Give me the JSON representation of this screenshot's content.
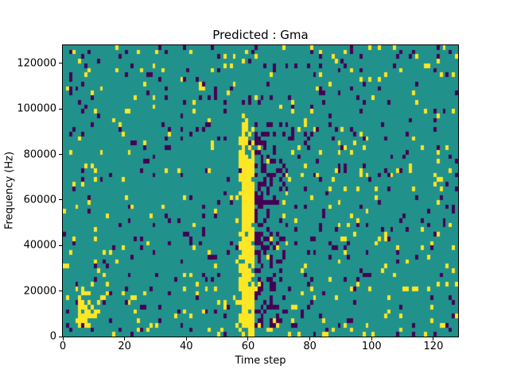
{
  "chart_data": {
    "type": "heatmap",
    "title": "Predicted : Gma",
    "xlabel": "Time step",
    "ylabel": "Frequency (Hz)",
    "x_range": [
      0,
      128
    ],
    "y_range": [
      0,
      128000
    ],
    "x_ticks": [
      0,
      20,
      40,
      60,
      80,
      100,
      120
    ],
    "y_ticks": [
      0,
      20000,
      40000,
      60000,
      80000,
      100000,
      120000
    ],
    "grid": {
      "cols": 128,
      "rows": 64
    },
    "legend": "none",
    "colormap": "viridis-3-class",
    "classes": [
      {
        "name": "mid-teal-background",
        "color": "#21918c"
      },
      {
        "name": "low-dark-purple",
        "color": "#440154"
      },
      {
        "name": "high-yellow",
        "color": "#fde725"
      }
    ],
    "noise": {
      "seed": 11,
      "purple_density": 0.045,
      "yellow_density": 0.034
    },
    "features": {
      "main_yellow_streak": {
        "cols": [
          57,
          61
        ],
        "rows": [
          0,
          46
        ],
        "core_cols": [
          58,
          61
        ],
        "core_rows": [
          0,
          38
        ],
        "core_prob": 0.93,
        "edge_prob": 0.45,
        "upper_prob": 0.55
      },
      "purple_cluster_right_of_streak": {
        "cols": [
          62,
          71
        ],
        "rows": [
          2,
          46
        ],
        "near_prob": 0.45,
        "far_base_prob": 0.38,
        "falloff_per_col": 0.05,
        "min_prob": 0.08
      },
      "bottom_left_yellow_blob": {
        "cols": [
          5,
          11
        ],
        "rows": [
          2,
          9
        ],
        "prob": 0.55
      }
    }
  },
  "text_color": "#000000"
}
